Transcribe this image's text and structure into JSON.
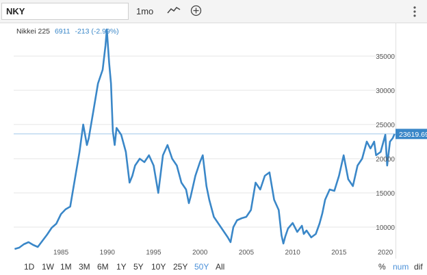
{
  "toolbar": {
    "symbol": "NKY",
    "interval": "1mo",
    "chart_type_icon": "line-chart-icon",
    "compare_icon": "add-circle-icon",
    "more_icon": "vertical-ellipsis-icon"
  },
  "legend": {
    "name": "Nikkei 225",
    "value": "6911",
    "change": "-213 (-2.99%)"
  },
  "price_label": "23619.69",
  "ranges": [
    "1D",
    "1W",
    "1M",
    "3M",
    "6M",
    "1Y",
    "5Y",
    "10Y",
    "25Y",
    "50Y",
    "All"
  ],
  "active_range": "50Y",
  "scales": [
    "%",
    "num",
    "dif"
  ],
  "active_scale": "num",
  "colors": {
    "line": "#3a87c8",
    "accent": "#4a90d9",
    "grid": "#e6e6e6"
  },
  "chart_data": {
    "type": "line",
    "title": "Nikkei 225",
    "xlabel": "",
    "ylabel": "",
    "xlim": [
      1979.9,
      2021.1
    ],
    "ylim": [
      5400,
      39800
    ],
    "x_ticks": [
      1985,
      1990,
      1995,
      2000,
      2005,
      2010,
      2015,
      2020
    ],
    "y_ticks": [
      10000,
      15000,
      20000,
      25000,
      30000,
      35000
    ],
    "reference_line": 23619.69,
    "series": [
      {
        "name": "Nikkei 225",
        "x": [
          1980.0,
          1980.5,
          1981.0,
          1981.5,
          1982.0,
          1982.5,
          1983.0,
          1983.5,
          1984.0,
          1984.5,
          1985.0,
          1985.5,
          1986.0,
          1986.5,
          1987.0,
          1987.4,
          1987.8,
          1988.0,
          1988.5,
          1989.0,
          1989.5,
          1989.8,
          1989.95,
          1990.2,
          1990.4,
          1990.6,
          1990.8,
          1991.0,
          1991.5,
          1992.0,
          1992.4,
          1992.7,
          1993.0,
          1993.5,
          1994.0,
          1994.5,
          1995.0,
          1995.5,
          1996.0,
          1996.5,
          1997.0,
          1997.5,
          1998.0,
          1998.5,
          1998.8,
          1999.0,
          1999.5,
          2000.0,
          2000.3,
          2000.7,
          2001.0,
          2001.5,
          2002.0,
          2002.5,
          2003.0,
          2003.3,
          2003.6,
          2004.0,
          2004.5,
          2005.0,
          2005.5,
          2006.0,
          2006.5,
          2007.0,
          2007.5,
          2008.0,
          2008.5,
          2008.8,
          2009.0,
          2009.2,
          2009.5,
          2010.0,
          2010.5,
          2011.0,
          2011.2,
          2011.5,
          2012.0,
          2012.5,
          2012.9,
          2013.2,
          2013.5,
          2014.0,
          2014.5,
          2015.0,
          2015.5,
          2016.0,
          2016.5,
          2017.0,
          2017.5,
          2018.0,
          2018.4,
          2018.8,
          2019.0,
          2019.5,
          2020.0,
          2020.2,
          2020.5,
          2020.8,
          2021.0
        ],
        "values": [
          6800,
          7000,
          7500,
          7800,
          7400,
          7100,
          8000,
          8900,
          9900,
          10500,
          11900,
          12600,
          13000,
          17000,
          21000,
          25000,
          22000,
          23000,
          27000,
          31000,
          33000,
          36500,
          38900,
          34000,
          31000,
          24000,
          22000,
          24500,
          23500,
          21000,
          16500,
          17500,
          19000,
          20000,
          19500,
          20500,
          19000,
          15000,
          20500,
          22000,
          20000,
          19000,
          16500,
          15500,
          13500,
          14500,
          17500,
          19500,
          20500,
          16000,
          14000,
          11500,
          10500,
          9500,
          8500,
          7800,
          10000,
          11000,
          11300,
          11500,
          12500,
          16500,
          15500,
          17500,
          18000,
          14000,
          12500,
          8800,
          7600,
          8600,
          9800,
          10600,
          9300,
          10200,
          9000,
          9500,
          8500,
          9000,
          10500,
          12000,
          14000,
          15500,
          15300,
          17500,
          20500,
          17000,
          16000,
          19000,
          20000,
          22500,
          21500,
          22500,
          20500,
          21000,
          23500,
          19000,
          22500,
          23000,
          23619.69
        ]
      }
    ]
  }
}
